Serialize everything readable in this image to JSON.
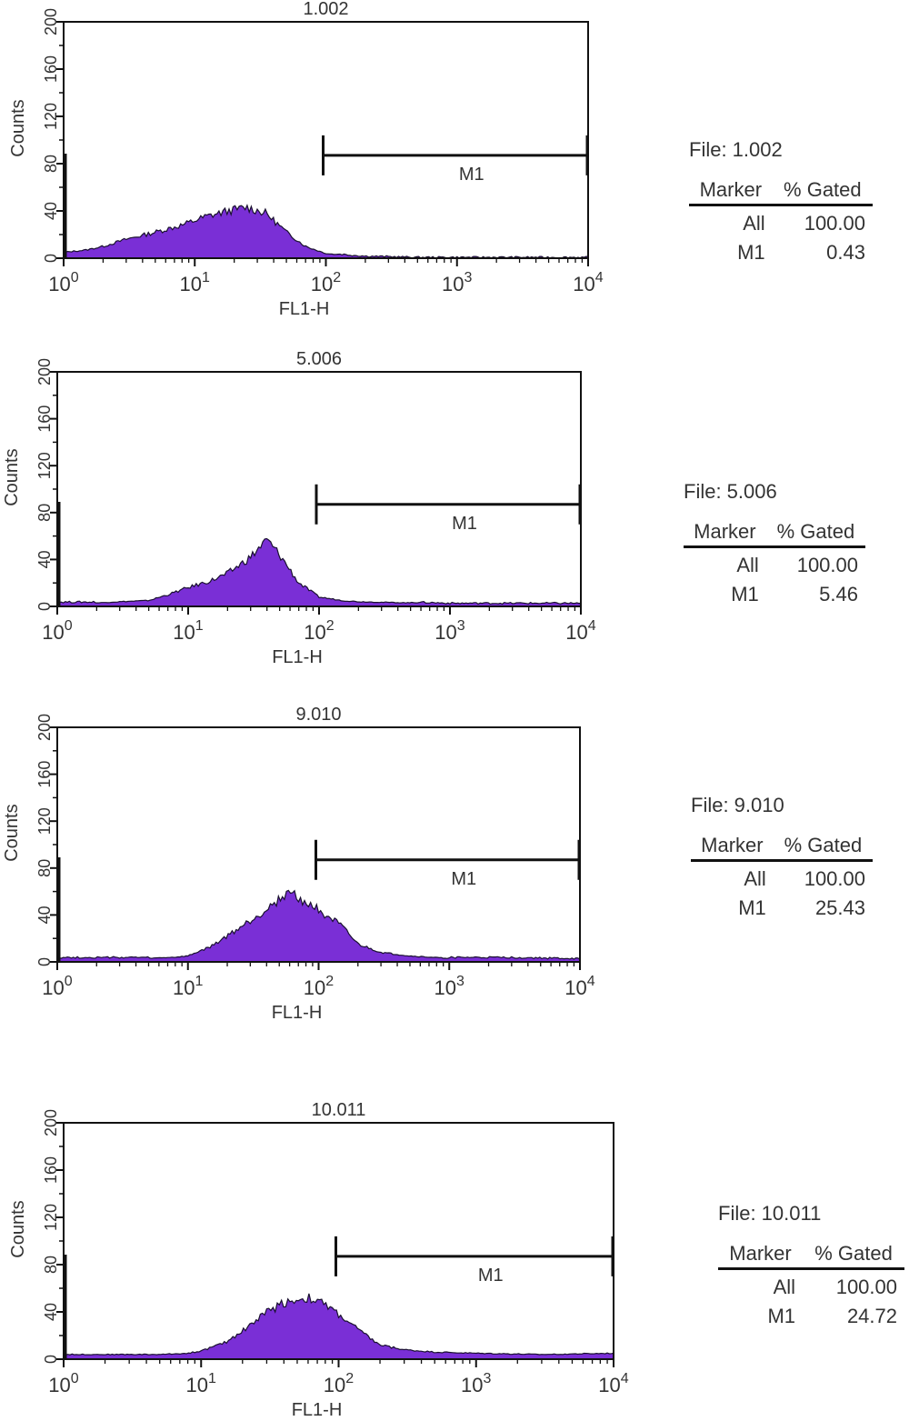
{
  "chart_data": [
    {
      "type": "area",
      "title": "1.002",
      "xlabel": "FL1-H",
      "ylabel": "Counts",
      "xscale": "log",
      "xlim": [
        1,
        10000
      ],
      "ylim": [
        0,
        200
      ],
      "x_ticks": [
        {
          "base": "10",
          "exp": "0"
        },
        {
          "base": "10",
          "exp": "1"
        },
        {
          "base": "10",
          "exp": "2"
        },
        {
          "base": "10",
          "exp": "3"
        },
        {
          "base": "10",
          "exp": "4"
        }
      ],
      "y_ticks": [
        "0",
        "40",
        "80",
        "120",
        "160",
        "200"
      ],
      "fill_color": "#7a2fd6",
      "marker": {
        "label": "M1",
        "start": 100,
        "end": 10000,
        "level": 87
      },
      "series": [
        {
          "x": [
            1,
            1.5,
            2,
            3,
            5,
            8,
            12,
            18,
            25,
            35,
            50,
            70,
            100,
            150,
            200,
            500,
            1000,
            10000
          ],
          "values": [
            5,
            7,
            10,
            16,
            22,
            28,
            35,
            40,
            43,
            38,
            22,
            10,
            4,
            2,
            1,
            0,
            0,
            0
          ]
        }
      ],
      "file_label": "File: 1.002",
      "stats": {
        "headers": [
          "Marker",
          "% Gated"
        ],
        "rows": [
          [
            "All",
            "100.00"
          ],
          [
            "M1",
            "0.43"
          ]
        ]
      }
    },
    {
      "type": "area",
      "title": "5.006",
      "xlabel": "FL1-H",
      "ylabel": "Counts",
      "xscale": "log",
      "xlim": [
        1,
        10000
      ],
      "ylim": [
        0,
        200
      ],
      "x_ticks": [
        {
          "base": "10",
          "exp": "0"
        },
        {
          "base": "10",
          "exp": "1"
        },
        {
          "base": "10",
          "exp": "2"
        },
        {
          "base": "10",
          "exp": "3"
        },
        {
          "base": "10",
          "exp": "4"
        }
      ],
      "y_ticks": [
        "0",
        "40",
        "80",
        "120",
        "160",
        "200"
      ],
      "fill_color": "#7a2fd6",
      "marker": {
        "label": "M1",
        "start": 100,
        "end": 10000,
        "level": 87
      },
      "series": [
        {
          "x": [
            1,
            2,
            3,
            5,
            7,
            10,
            15,
            20,
            30,
            40,
            50,
            70,
            100,
            150,
            200,
            500,
            1000,
            10000
          ],
          "values": [
            3,
            3,
            4,
            5,
            10,
            16,
            22,
            28,
            42,
            57,
            44,
            20,
            8,
            5,
            4,
            3,
            2,
            2
          ]
        }
      ],
      "file_label": "File: 5.006",
      "stats": {
        "headers": [
          "Marker",
          "% Gated"
        ],
        "rows": [
          [
            "All",
            "100.00"
          ],
          [
            "M1",
            "5.46"
          ]
        ]
      }
    },
    {
      "type": "area",
      "title": "9.010",
      "xlabel": "FL1-H",
      "ylabel": "Counts",
      "xscale": "log",
      "xlim": [
        1,
        10000
      ],
      "ylim": [
        0,
        200
      ],
      "x_ticks": [
        {
          "base": "10",
          "exp": "0"
        },
        {
          "base": "10",
          "exp": "1"
        },
        {
          "base": "10",
          "exp": "2"
        },
        {
          "base": "10",
          "exp": "3"
        },
        {
          "base": "10",
          "exp": "4"
        }
      ],
      "y_ticks": [
        "0",
        "40",
        "80",
        "120",
        "160",
        "200"
      ],
      "fill_color": "#7a2fd6",
      "marker": {
        "label": "M1",
        "start": 100,
        "end": 10000,
        "level": 87
      },
      "series": [
        {
          "x": [
            1,
            3,
            5,
            8,
            10,
            15,
            20,
            30,
            40,
            60,
            80,
            100,
            150,
            200,
            300,
            500,
            1000,
            3000,
            10000
          ],
          "values": [
            3,
            3,
            3,
            4,
            5,
            13,
            22,
            35,
            45,
            60,
            50,
            45,
            30,
            15,
            8,
            5,
            3,
            3,
            2
          ]
        }
      ],
      "file_label": "File: 9.010",
      "stats": {
        "headers": [
          "Marker",
          "% Gated"
        ],
        "rows": [
          [
            "All",
            "100.00"
          ],
          [
            "M1",
            "25.43"
          ]
        ]
      }
    },
    {
      "type": "area",
      "title": "10.011",
      "xlabel": "FL1-H",
      "ylabel": "Counts",
      "xscale": "log",
      "xlim": [
        1,
        10000
      ],
      "ylim": [
        0,
        200
      ],
      "x_ticks": [
        {
          "base": "10",
          "exp": "0"
        },
        {
          "base": "10",
          "exp": "1"
        },
        {
          "base": "10",
          "exp": "2"
        },
        {
          "base": "10",
          "exp": "3"
        },
        {
          "base": "10",
          "exp": "4"
        }
      ],
      "y_ticks": [
        "0",
        "40",
        "80",
        "120",
        "160",
        "200"
      ],
      "fill_color": "#7a2fd6",
      "marker": {
        "label": "M1",
        "start": 100,
        "end": 10000,
        "level": 87
      },
      "series": [
        {
          "x": [
            1,
            3,
            5,
            8,
            10,
            15,
            20,
            30,
            40,
            60,
            80,
            100,
            150,
            200,
            300,
            500,
            1000,
            3000,
            10000
          ],
          "values": [
            4,
            4,
            4,
            5,
            7,
            14,
            24,
            40,
            48,
            52,
            46,
            38,
            22,
            12,
            8,
            6,
            5,
            4,
            5
          ]
        }
      ],
      "file_label": "File: 10.011",
      "stats": {
        "headers": [
          "Marker",
          "% Gated"
        ],
        "rows": [
          [
            "All",
            "100.00"
          ],
          [
            "M1",
            "24.72"
          ]
        ]
      }
    }
  ]
}
